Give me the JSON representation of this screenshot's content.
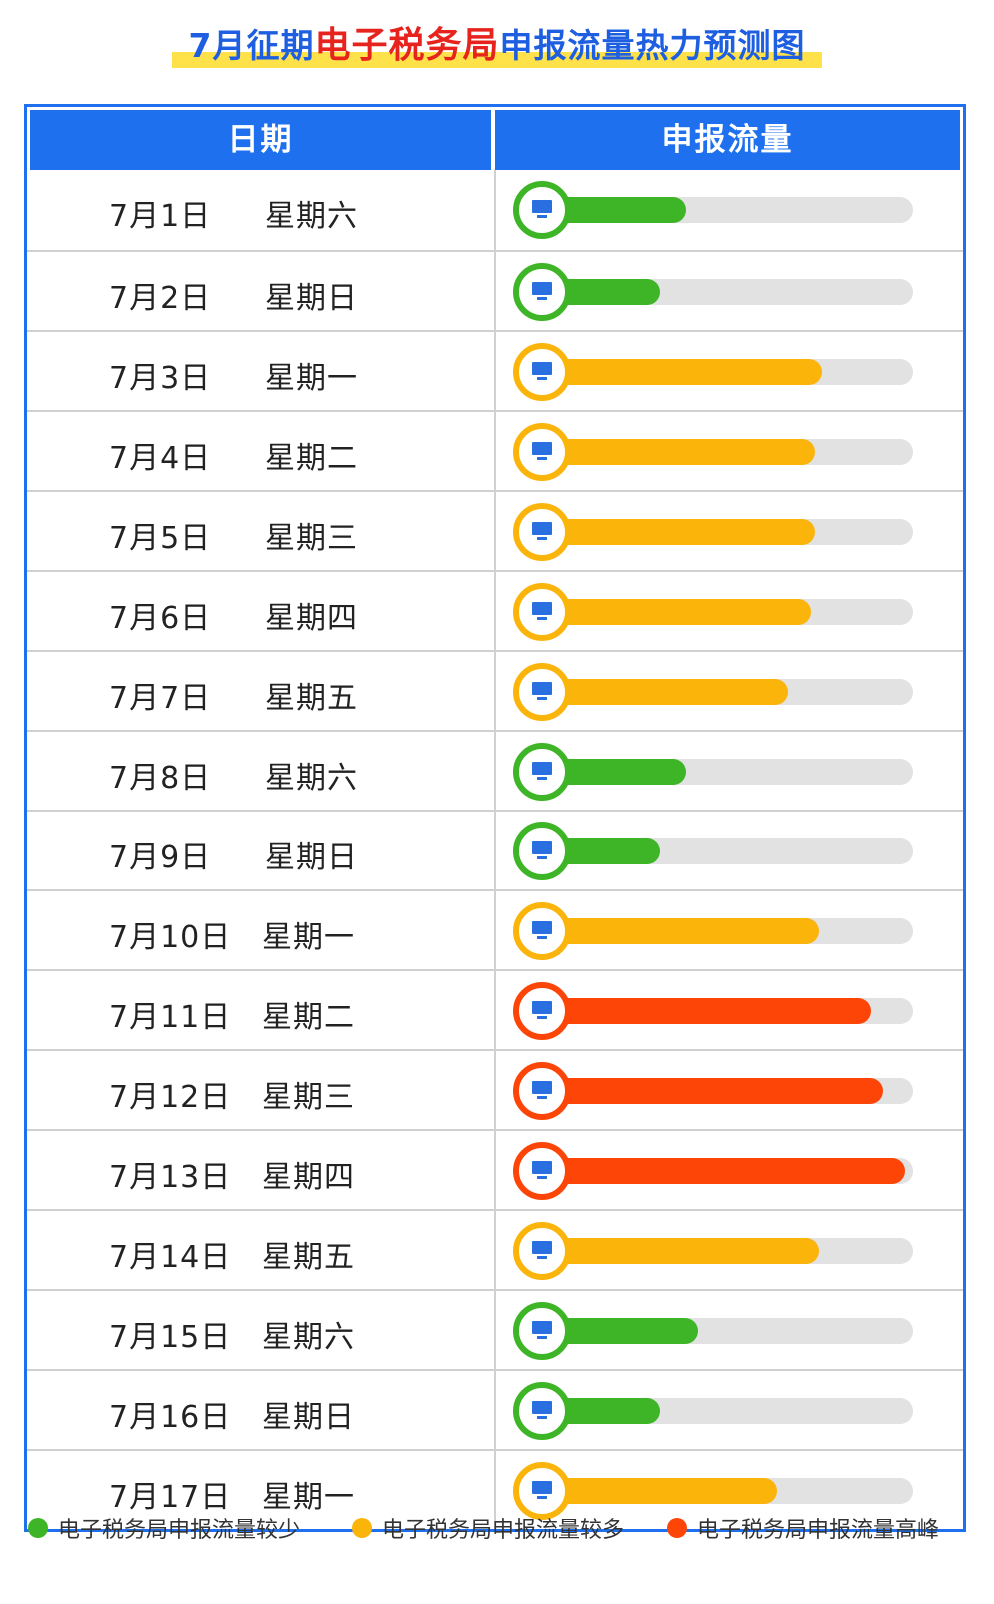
{
  "title": {
    "prefix": "7月征期",
    "highlight": "电子税务局",
    "suffix": "申报流量热力预测图"
  },
  "headers": {
    "date": "日期",
    "flow": "申报流量"
  },
  "colors": {
    "low": "#3db526",
    "medium": "#fbb40a",
    "peak": "#fd4508",
    "header": "#1f70ee"
  },
  "chart_data": {
    "type": "bar",
    "orientation": "horizontal",
    "value_scale": "fraction of full bar (0-1), estimated from fill",
    "rows": [
      {
        "date": "7月1日",
        "weekday": "星期六",
        "level": "low",
        "value": 0.4
      },
      {
        "date": "7月2日",
        "weekday": "星期日",
        "level": "low",
        "value": 0.33
      },
      {
        "date": "7月3日",
        "weekday": "星期一",
        "level": "medium",
        "value": 0.76
      },
      {
        "date": "7月4日",
        "weekday": "星期二",
        "level": "medium",
        "value": 0.74
      },
      {
        "date": "7月5日",
        "weekday": "星期三",
        "level": "medium",
        "value": 0.74
      },
      {
        "date": "7月6日",
        "weekday": "星期四",
        "level": "medium",
        "value": 0.73
      },
      {
        "date": "7月7日",
        "weekday": "星期五",
        "level": "medium",
        "value": 0.67
      },
      {
        "date": "7月8日",
        "weekday": "星期六",
        "level": "low",
        "value": 0.4
      },
      {
        "date": "7月9日",
        "weekday": "星期日",
        "level": "low",
        "value": 0.33
      },
      {
        "date": "7月10日",
        "weekday": "星期一",
        "level": "medium",
        "value": 0.75
      },
      {
        "date": "7月11日",
        "weekday": "星期二",
        "level": "peak",
        "value": 0.89
      },
      {
        "date": "7月12日",
        "weekday": "星期三",
        "level": "peak",
        "value": 0.92
      },
      {
        "date": "7月13日",
        "weekday": "星期四",
        "level": "peak",
        "value": 0.98
      },
      {
        "date": "7月14日",
        "weekday": "星期五",
        "level": "medium",
        "value": 0.75
      },
      {
        "date": "7月15日",
        "weekday": "星期六",
        "level": "low",
        "value": 0.43
      },
      {
        "date": "7月16日",
        "weekday": "星期日",
        "level": "low",
        "value": 0.33
      },
      {
        "date": "7月17日",
        "weekday": "星期一",
        "level": "medium",
        "value": 0.64
      }
    ]
  },
  "legend": [
    {
      "label": "电子税务局申报流量较少",
      "level": "low"
    },
    {
      "label": "电子税务局申报流量较多",
      "level": "medium"
    },
    {
      "label": "电子税务局申报流量高峰",
      "level": "peak"
    }
  ]
}
